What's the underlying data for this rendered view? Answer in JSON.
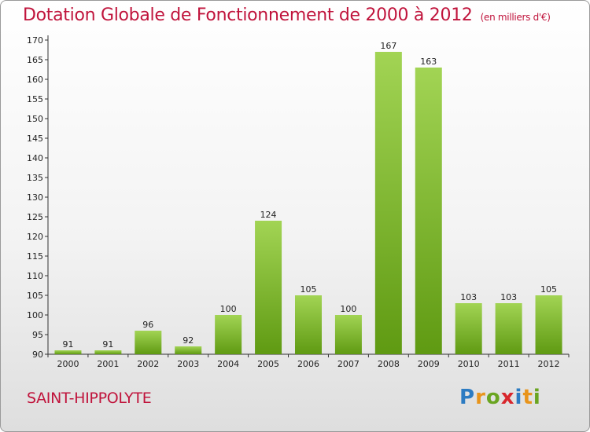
{
  "header": {
    "title": "Dotation Globale de Fonctionnement de 2000 à 2012",
    "unit": "(en milliers d'€)"
  },
  "footer": {
    "commune": "SAINT-HIPPOLYTE",
    "logo": "Proxiti"
  },
  "colors": {
    "accent": "#c0143c",
    "bar_light": "#a2d454",
    "bar_dark": "#5f9a12"
  },
  "chart_data": {
    "type": "bar",
    "title": "Dotation Globale de Fonctionnement de 2000 à 2012",
    "subtitle": "(en milliers d'€)",
    "categories": [
      "2000",
      "2001",
      "2002",
      "2003",
      "2004",
      "2005",
      "2006",
      "2007",
      "2008",
      "2009",
      "2010",
      "2011",
      "2012"
    ],
    "values": [
      91,
      91,
      96,
      92,
      100,
      124,
      105,
      100,
      167,
      163,
      103,
      103,
      105
    ],
    "ylim": [
      90,
      170
    ],
    "yticks": [
      90,
      95,
      100,
      105,
      110,
      115,
      120,
      125,
      130,
      135,
      140,
      145,
      150,
      155,
      160,
      165,
      170
    ],
    "grid": false,
    "legend": "none"
  }
}
